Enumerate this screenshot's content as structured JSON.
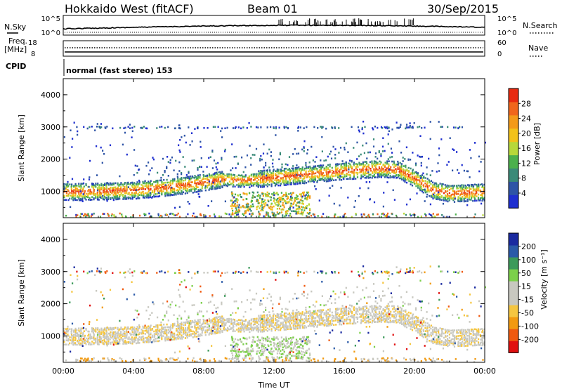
{
  "header": {
    "station": "Hokkaido West (fitACF)",
    "beam": "Beam 01",
    "date": "30/Sep/2015"
  },
  "noise_panel": {
    "left_label": "N.Sky",
    "right_label": "N.Search",
    "left_ticks": [
      "10^5",
      "10^0"
    ],
    "right_ticks": [
      "10^5",
      "10^0"
    ]
  },
  "freq_panel": {
    "left_label_1": "Freq.",
    "left_label_2": "[MHz]",
    "right_label": "Nave",
    "left_ticks": [
      "18",
      "8"
    ],
    "right_ticks": [
      "60",
      "0"
    ]
  },
  "cpid": {
    "label": "CPID",
    "text": "normal (fast stereo) 153"
  },
  "x_axis": {
    "label": "Time UT",
    "ticks": [
      "00:00",
      "04:00",
      "08:00",
      "12:00",
      "16:00",
      "20:00",
      "00:00"
    ]
  },
  "colors": {
    "power_scale": [
      "#1f2fd0",
      "#2e54a6",
      "#3a8a78",
      "#4cb04c",
      "#b7d83a",
      "#f2c21a",
      "#f39a1a",
      "#f0661c",
      "#e82a10"
    ],
    "velocity_scale": [
      "#e01010",
      "#f05a10",
      "#f29a10",
      "#f5c640",
      "#c8c8c0",
      "#c8c8c0",
      "#7cd04a",
      "#3c9a5a",
      "#2a5aa8",
      "#1a2aa0"
    ]
  },
  "chart_data": [
    {
      "type": "heatmap",
      "panel": "power",
      "ylabel": "Slant Range [km]",
      "xlabel": "",
      "ylim": [
        180,
        4500
      ],
      "xlim": [
        0,
        24
      ],
      "yticks": [
        1000,
        2000,
        3000,
        4000
      ],
      "colorbar": {
        "label": "Power [dB]",
        "range": [
          0,
          32
        ],
        "ticks": [
          "4",
          "8",
          "12",
          "16",
          "20",
          "24",
          "28"
        ]
      },
      "main_echo_band_range_km": [
        [
          0,
          1000
        ],
        [
          2,
          1020
        ],
        [
          4,
          1050
        ],
        [
          6,
          1150
        ],
        [
          8,
          1300
        ],
        [
          9,
          1400
        ],
        [
          10,
          1350
        ],
        [
          12,
          1450
        ],
        [
          14,
          1550
        ],
        [
          16,
          1650
        ],
        [
          18,
          1720
        ],
        [
          19,
          1700
        ],
        [
          20,
          1400
        ],
        [
          21,
          1050
        ],
        [
          22,
          950
        ],
        [
          24,
          1000
        ]
      ]
    },
    {
      "type": "heatmap",
      "panel": "velocity",
      "ylabel": "Slant Range [km]",
      "xlabel": "Time UT",
      "ylim": [
        180,
        4500
      ],
      "xlim": [
        0,
        24
      ],
      "yticks": [
        1000,
        2000,
        3000,
        4000
      ],
      "colorbar": {
        "label": "Velocity [m s⁻¹]",
        "range": [
          -250,
          250
        ],
        "ticks": [
          "200",
          "100",
          "50",
          "15",
          "-15",
          "-50",
          "-100",
          "-200"
        ]
      }
    }
  ]
}
